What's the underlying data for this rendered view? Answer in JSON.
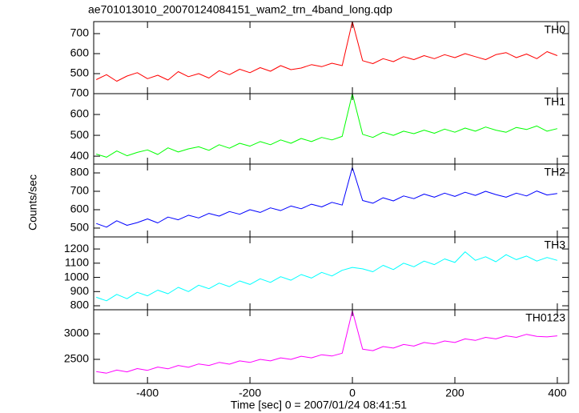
{
  "title": "ae701013010_20070124084151_wam2_trn_4band_long.qdp",
  "y_label": "Counts/sec",
  "x_label": "Time [sec] 0 = 2007/01/24 08:41:51",
  "chart_data": [
    {
      "type": "line",
      "label": "TH0",
      "color": "#ff0000",
      "x": [
        -500,
        -480,
        -460,
        -440,
        -420,
        -400,
        -380,
        -360,
        -340,
        -320,
        -300,
        -280,
        -260,
        -240,
        -220,
        -200,
        -180,
        -160,
        -140,
        -120,
        -100,
        -80,
        -60,
        -40,
        -20,
        0,
        20,
        40,
        60,
        80,
        100,
        120,
        140,
        160,
        180,
        200,
        220,
        240,
        260,
        280,
        300,
        320,
        340,
        360,
        380,
        400
      ],
      "values": [
        470,
        495,
        462,
        488,
        505,
        475,
        492,
        468,
        510,
        485,
        500,
        478,
        515,
        495,
        522,
        505,
        530,
        512,
        540,
        520,
        528,
        545,
        535,
        552,
        540,
        760,
        565,
        550,
        575,
        560,
        585,
        570,
        590,
        575,
        595,
        580,
        600,
        585,
        570,
        595,
        605,
        580,
        598,
        575,
        610,
        590
      ],
      "xlim": [
        -505,
        422
      ],
      "xticks": [
        -400,
        -200,
        0,
        200,
        400
      ],
      "ylim": [
        400,
        760
      ],
      "yticks": [
        500,
        600,
        700
      ]
    },
    {
      "type": "line",
      "label": "TH1",
      "color": "#00ff00",
      "x": [
        -500,
        -480,
        -460,
        -440,
        -420,
        -400,
        -380,
        -360,
        -340,
        -320,
        -300,
        -280,
        -260,
        -240,
        -220,
        -200,
        -180,
        -160,
        -140,
        -120,
        -100,
        -80,
        -60,
        -40,
        -20,
        0,
        20,
        40,
        60,
        80,
        100,
        120,
        140,
        160,
        180,
        200,
        220,
        240,
        260,
        280,
        300,
        320,
        340,
        360,
        380,
        400
      ],
      "values": [
        410,
        395,
        425,
        402,
        418,
        430,
        408,
        440,
        420,
        435,
        445,
        428,
        455,
        438,
        462,
        448,
        470,
        455,
        478,
        462,
        485,
        470,
        490,
        478,
        495,
        700,
        505,
        490,
        515,
        500,
        520,
        508,
        525,
        510,
        530,
        515,
        535,
        520,
        540,
        525,
        515,
        538,
        528,
        545,
        520,
        532
      ],
      "xlim": [
        -505,
        422
      ],
      "xticks": [
        -400,
        -200,
        0,
        200,
        400
      ],
      "ylim": [
        362,
        700
      ],
      "yticks": [
        400,
        500,
        600,
        700
      ]
    },
    {
      "type": "line",
      "label": "TH2",
      "color": "#0000ff",
      "x": [
        -500,
        -480,
        -460,
        -440,
        -420,
        -400,
        -380,
        -360,
        -340,
        -320,
        -300,
        -280,
        -260,
        -240,
        -220,
        -200,
        -180,
        -160,
        -140,
        -120,
        -100,
        -80,
        -60,
        -40,
        -20,
        0,
        20,
        40,
        60,
        80,
        100,
        120,
        140,
        160,
        180,
        200,
        220,
        240,
        260,
        280,
        300,
        320,
        340,
        360,
        380,
        400
      ],
      "values": [
        525,
        505,
        540,
        515,
        530,
        550,
        528,
        560,
        545,
        570,
        555,
        580,
        565,
        590,
        575,
        600,
        585,
        610,
        595,
        620,
        605,
        630,
        615,
        640,
        625,
        830,
        650,
        635,
        665,
        648,
        675,
        660,
        685,
        668,
        690,
        672,
        695,
        678,
        700,
        682,
        668,
        690,
        675,
        702,
        680,
        688
      ],
      "xlim": [
        -505,
        422
      ],
      "xticks": [
        -400,
        -200,
        0,
        200,
        400
      ],
      "ylim": [
        452,
        848
      ],
      "yticks": [
        500,
        600,
        700,
        800
      ]
    },
    {
      "type": "line",
      "label": "TH3",
      "color": "#00ffff",
      "x": [
        -500,
        -480,
        -460,
        -440,
        -420,
        -400,
        -380,
        -360,
        -340,
        -320,
        -300,
        -280,
        -260,
        -240,
        -220,
        -200,
        -180,
        -160,
        -140,
        -120,
        -100,
        -80,
        -60,
        -40,
        -20,
        0,
        20,
        40,
        60,
        80,
        100,
        120,
        140,
        160,
        180,
        200,
        220,
        240,
        260,
        280,
        300,
        320,
        340,
        360,
        380,
        400
      ],
      "values": [
        860,
        835,
        880,
        850,
        895,
        870,
        910,
        885,
        930,
        900,
        945,
        920,
        960,
        935,
        975,
        950,
        990,
        965,
        1005,
        980,
        1020,
        995,
        1035,
        1010,
        1050,
        1070,
        1060,
        1040,
        1085,
        1055,
        1100,
        1075,
        1115,
        1090,
        1130,
        1105,
        1180,
        1120,
        1145,
        1110,
        1160,
        1125,
        1150,
        1115,
        1140,
        1120
      ],
      "xlim": [
        -505,
        422
      ],
      "xticks": [
        -400,
        -200,
        0,
        200,
        400
      ],
      "ylim": [
        772,
        1285
      ],
      "yticks": [
        800,
        900,
        1000,
        1100,
        1200
      ]
    },
    {
      "type": "line",
      "label": "TH0123",
      "color": "#ff00ff",
      "x": [
        -500,
        -480,
        -460,
        -440,
        -420,
        -400,
        -380,
        -360,
        -340,
        -320,
        -300,
        -280,
        -260,
        -240,
        -220,
        -200,
        -180,
        -160,
        -140,
        -120,
        -100,
        -80,
        -60,
        -40,
        -20,
        0,
        20,
        40,
        60,
        80,
        100,
        120,
        140,
        160,
        180,
        200,
        220,
        240,
        260,
        280,
        300,
        320,
        340,
        360,
        380,
        400
      ],
      "values": [
        2260,
        2230,
        2290,
        2255,
        2320,
        2285,
        2350,
        2315,
        2380,
        2345,
        2410,
        2380,
        2440,
        2405,
        2470,
        2440,
        2500,
        2470,
        2530,
        2500,
        2560,
        2530,
        2590,
        2565,
        2620,
        3450,
        2700,
        2670,
        2750,
        2720,
        2790,
        2760,
        2830,
        2800,
        2860,
        2830,
        2900,
        2870,
        2930,
        2900,
        2960,
        2930,
        2990,
        2950,
        2940,
        2960
      ],
      "xlim": [
        -505,
        422
      ],
      "xticks": [
        -400,
        -200,
        0,
        200,
        400
      ],
      "ylim": [
        2030,
        3470
      ],
      "yticks": [
        2500,
        3000
      ]
    }
  ]
}
